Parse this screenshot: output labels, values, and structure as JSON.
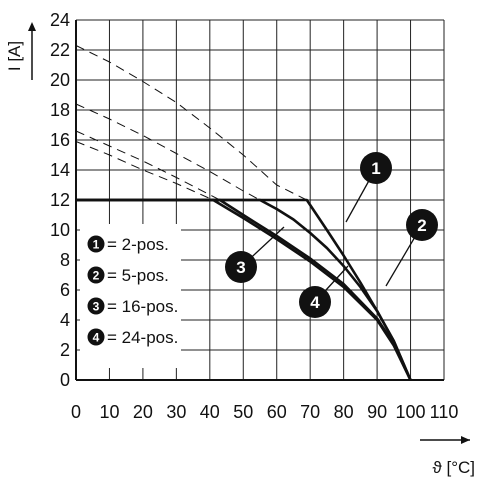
{
  "chart_data": {
    "type": "line",
    "xlabel": "ϑ [°C]",
    "ylabel": "I [A]",
    "xlim": [
      0,
      110
    ],
    "ylim": [
      0,
      24
    ],
    "x_ticks": [
      "0",
      "10",
      "20",
      "30",
      "40",
      "50",
      "60",
      "70",
      "80",
      "90",
      "100",
      "110"
    ],
    "y_ticks": [
      "0",
      "2",
      "4",
      "6",
      "8",
      "10",
      "12",
      "14",
      "16",
      "18",
      "20",
      "22",
      "24"
    ],
    "grid": true,
    "legend_position": "left",
    "legend": [
      {
        "marker": "1",
        "label": "= 2-pos."
      },
      {
        "marker": "2",
        "label": "= 5-pos."
      },
      {
        "marker": "3",
        "label": "= 16-pos."
      },
      {
        "marker": "4",
        "label": "= 24-pos."
      }
    ],
    "series": [
      {
        "marker": "1",
        "style": "solid",
        "x": [
          0,
          69,
          75,
          80,
          85,
          90,
          95,
          100
        ],
        "y": [
          12,
          12,
          10,
          8.3,
          6.5,
          4.6,
          2.6,
          0
        ]
      },
      {
        "marker": "2",
        "style": "solid",
        "x": [
          0,
          55,
          60,
          65,
          70,
          75,
          80,
          85,
          90,
          95,
          100
        ],
        "y": [
          12,
          12,
          11.4,
          10.7,
          9.8,
          8.8,
          7.6,
          6.2,
          4.6,
          2.6,
          0
        ]
      },
      {
        "marker": "3",
        "style": "solid",
        "x": [
          0,
          43,
          50,
          60,
          70,
          80,
          90,
          95,
          100
        ],
        "y": [
          12,
          12,
          11,
          9.6,
          8.1,
          6.4,
          4.1,
          2.4,
          0
        ]
      },
      {
        "marker": "4",
        "style": "solid",
        "x": [
          0,
          41,
          50,
          60,
          70,
          80,
          90,
          95,
          100
        ],
        "y": [
          12,
          12,
          10.8,
          9.4,
          7.9,
          6.2,
          4,
          2.3,
          0
        ]
      },
      {
        "marker": "1",
        "style": "dashed",
        "x": [
          0,
          10,
          20,
          30,
          40,
          50,
          60,
          69
        ],
        "y": [
          22.3,
          21.2,
          19.9,
          18.5,
          16.8,
          15,
          13,
          12
        ]
      },
      {
        "marker": "2",
        "style": "dashed",
        "x": [
          0,
          10,
          20,
          30,
          40,
          50,
          55
        ],
        "y": [
          18.4,
          17.4,
          16.3,
          15.1,
          13.9,
          12.6,
          12
        ]
      },
      {
        "marker": "3",
        "style": "dashed",
        "x": [
          0,
          10,
          20,
          30,
          43
        ],
        "y": [
          16.6,
          15.6,
          14.6,
          13.5,
          12
        ]
      },
      {
        "marker": "4",
        "style": "dashed",
        "x": [
          0,
          10,
          20,
          30,
          41
        ],
        "y": [
          15.9,
          15,
          14,
          13.1,
          12
        ]
      }
    ]
  }
}
